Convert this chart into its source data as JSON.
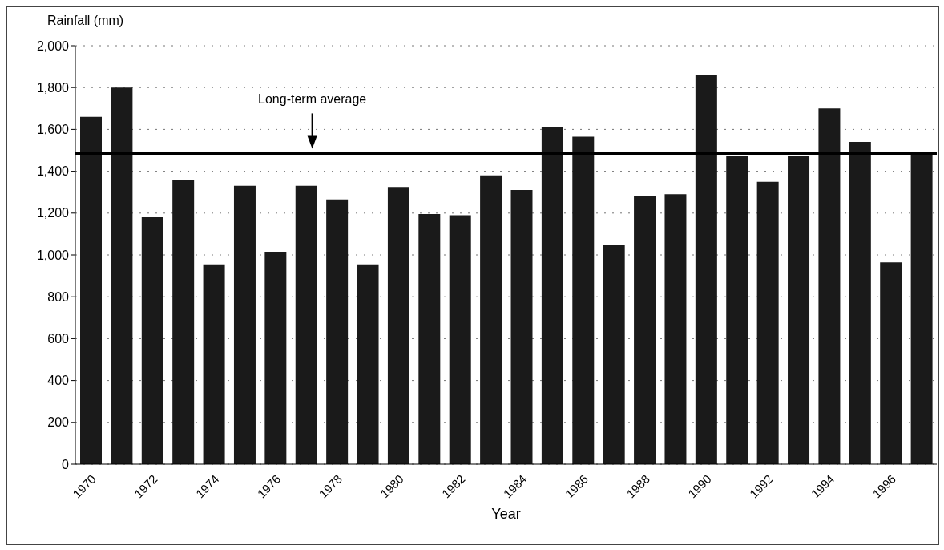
{
  "chart_data": {
    "type": "bar",
    "ylabel": "Rainfall (mm)",
    "xlabel": "Year",
    "categories": [
      "1970",
      null,
      "1972",
      null,
      "1974",
      null,
      "1976",
      null,
      "1978",
      null,
      "1980",
      null,
      "1982",
      null,
      "1984",
      null,
      "1986",
      null,
      "1988",
      null,
      "1990",
      null,
      "1992",
      null,
      "1994",
      null,
      "1996",
      null
    ],
    "values": [
      1660,
      1800,
      1180,
      1360,
      955,
      1330,
      1015,
      1330,
      1265,
      955,
      1325,
      1195,
      1190,
      1380,
      1310,
      1610,
      1565,
      1050,
      1280,
      1290,
      1860,
      1475,
      1350,
      1475,
      1700,
      1540,
      965,
      1490
    ],
    "color": "#1a1a1a",
    "ylim": [
      0,
      2000
    ],
    "yticks": [
      0,
      200,
      400,
      600,
      800,
      {
        "value": 1000,
        "label": "1,000"
      },
      {
        "value": 1200,
        "label": "1,200"
      },
      {
        "value": 1400,
        "label": "1,400"
      },
      {
        "value": 1600,
        "label": "1,600"
      },
      {
        "value": 1800,
        "label": "1,800"
      },
      {
        "value": 2000,
        "label": "2,000"
      }
    ],
    "grid": "y",
    "ref_lines": [
      {
        "axis": "y",
        "value": 1485,
        "label": "Long-term average",
        "color": "#000000"
      }
    ]
  }
}
